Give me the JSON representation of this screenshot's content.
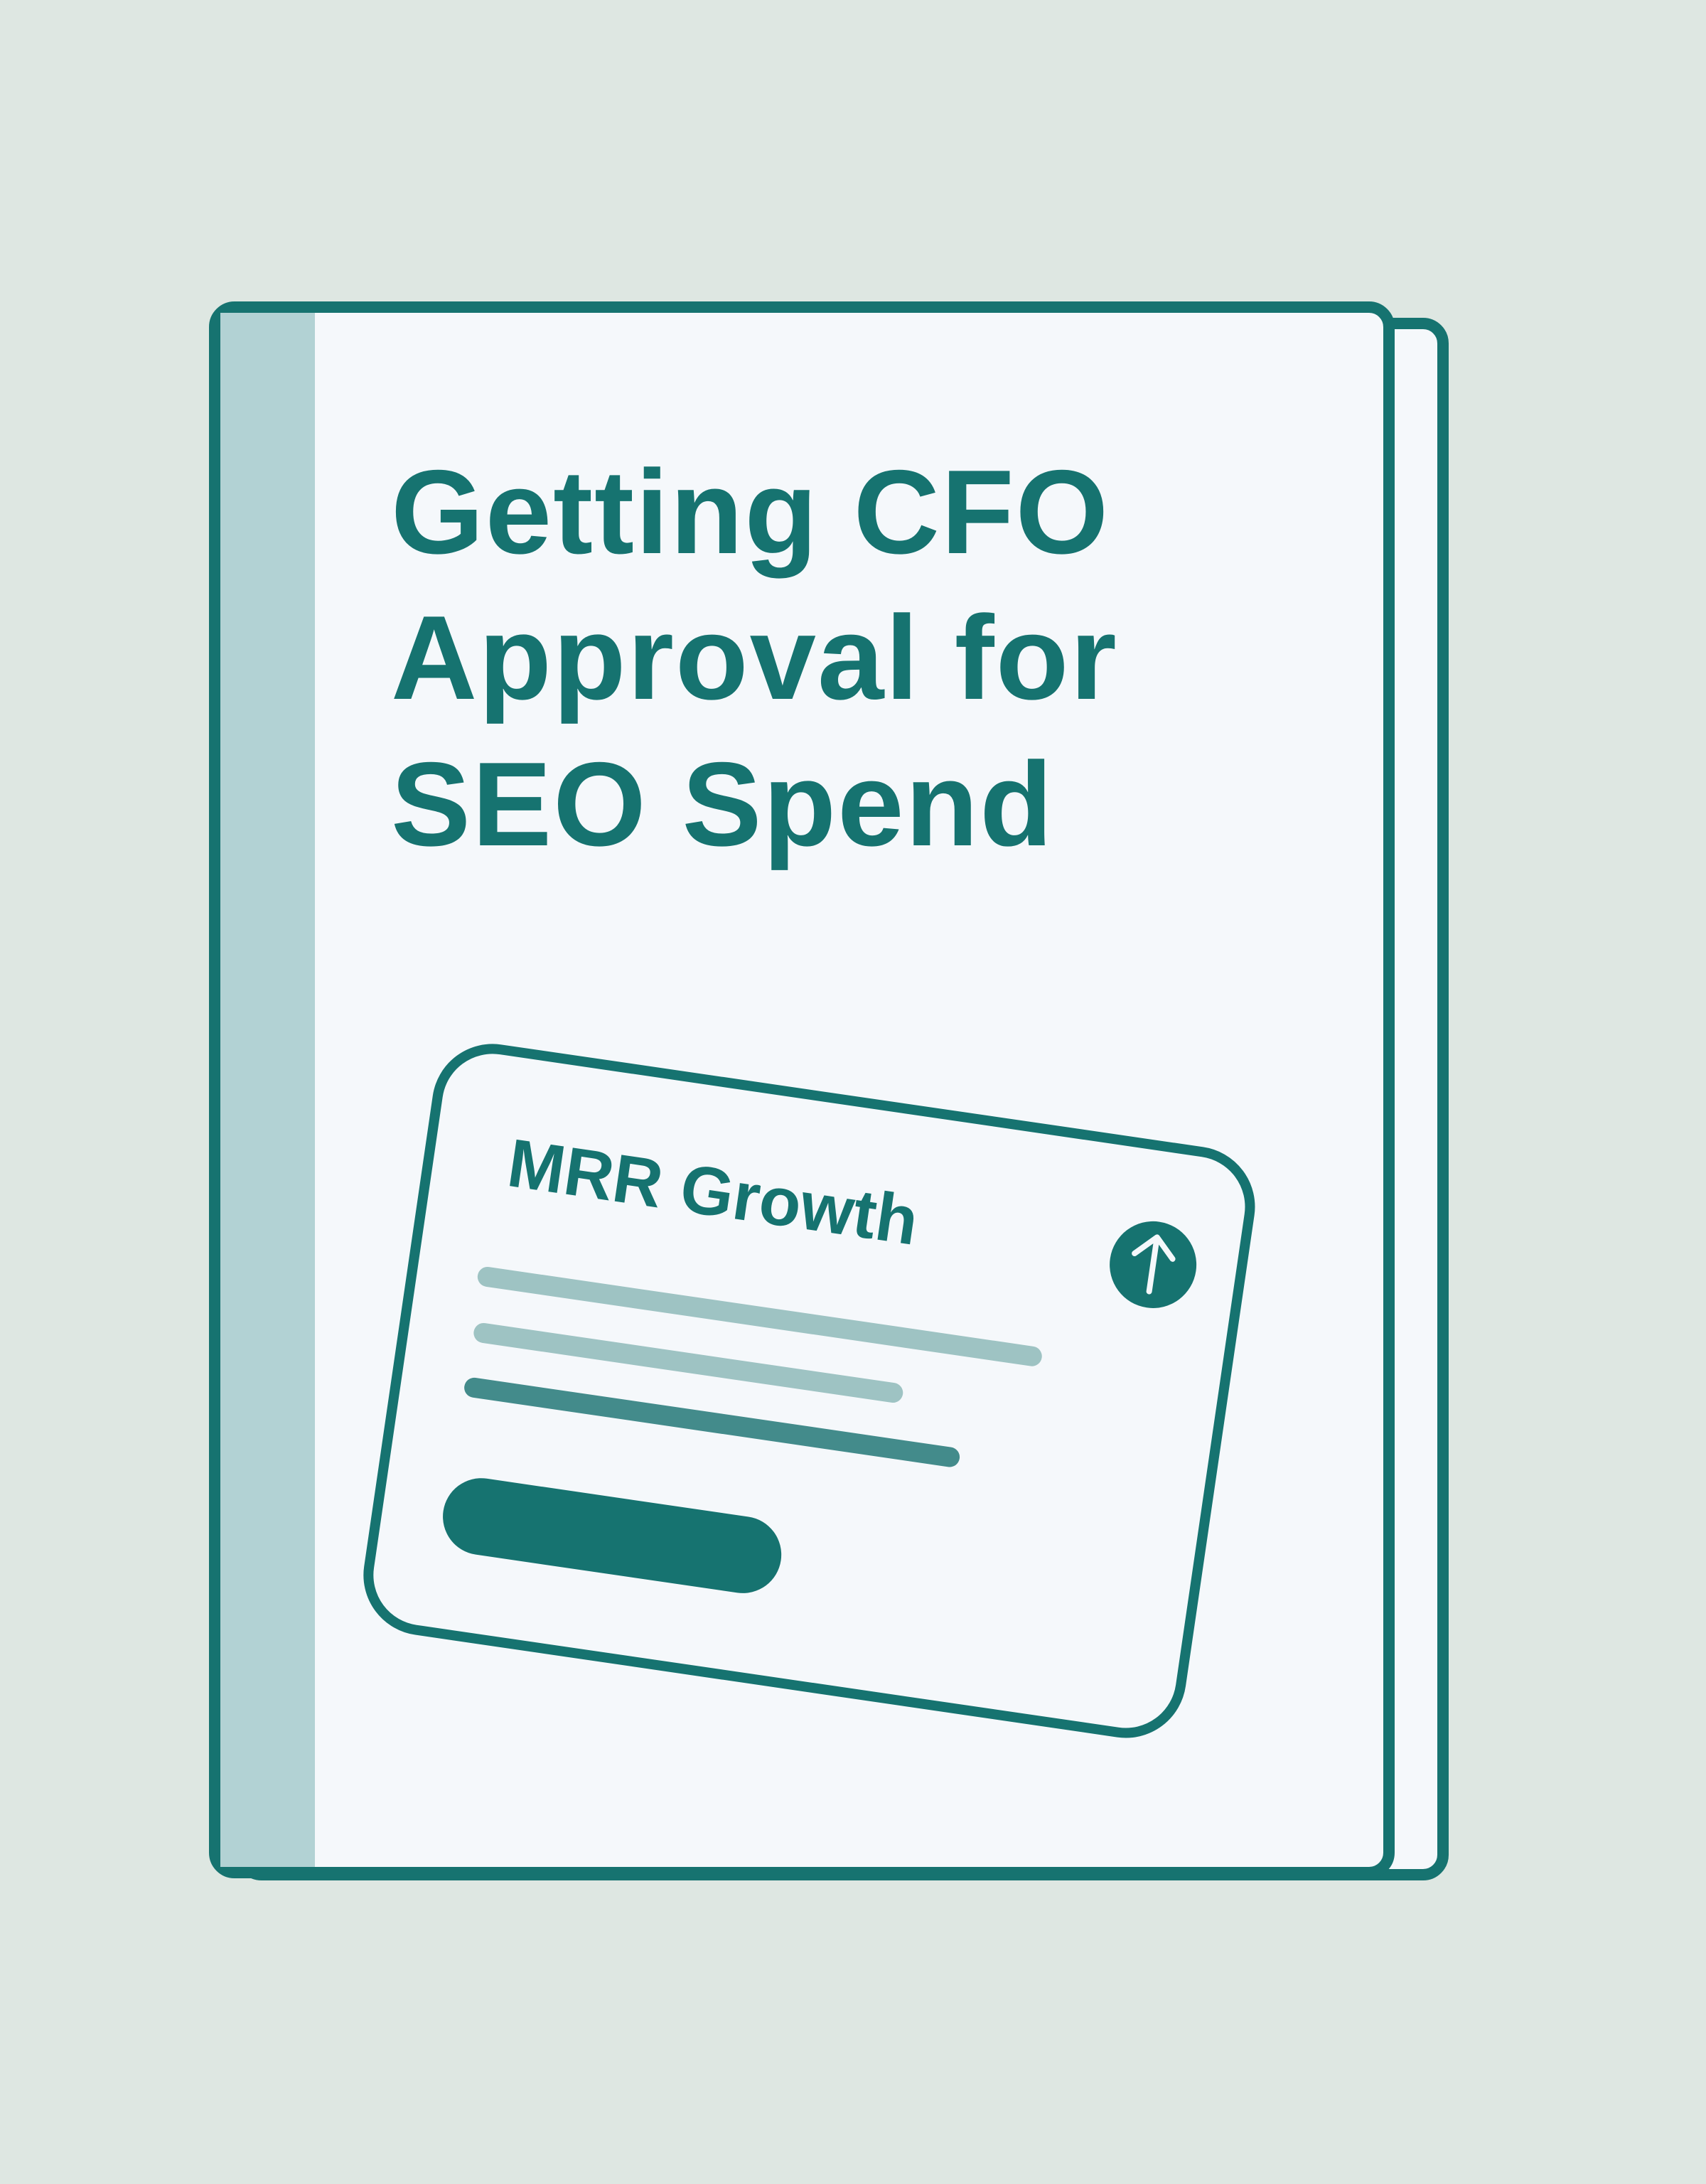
{
  "cover": {
    "title_lines": [
      "Getting CFO",
      "Approval for",
      "SEO Spend"
    ],
    "card": {
      "title": "MRR Growth",
      "icon": "arrow-up-icon"
    }
  },
  "colors": {
    "background": "#dee7e2",
    "primary": "#167370",
    "spine": "#b2d2d4",
    "page": "#f5f8fb",
    "line_light": "#9ec3c3",
    "line_mid": "#438b8b"
  }
}
